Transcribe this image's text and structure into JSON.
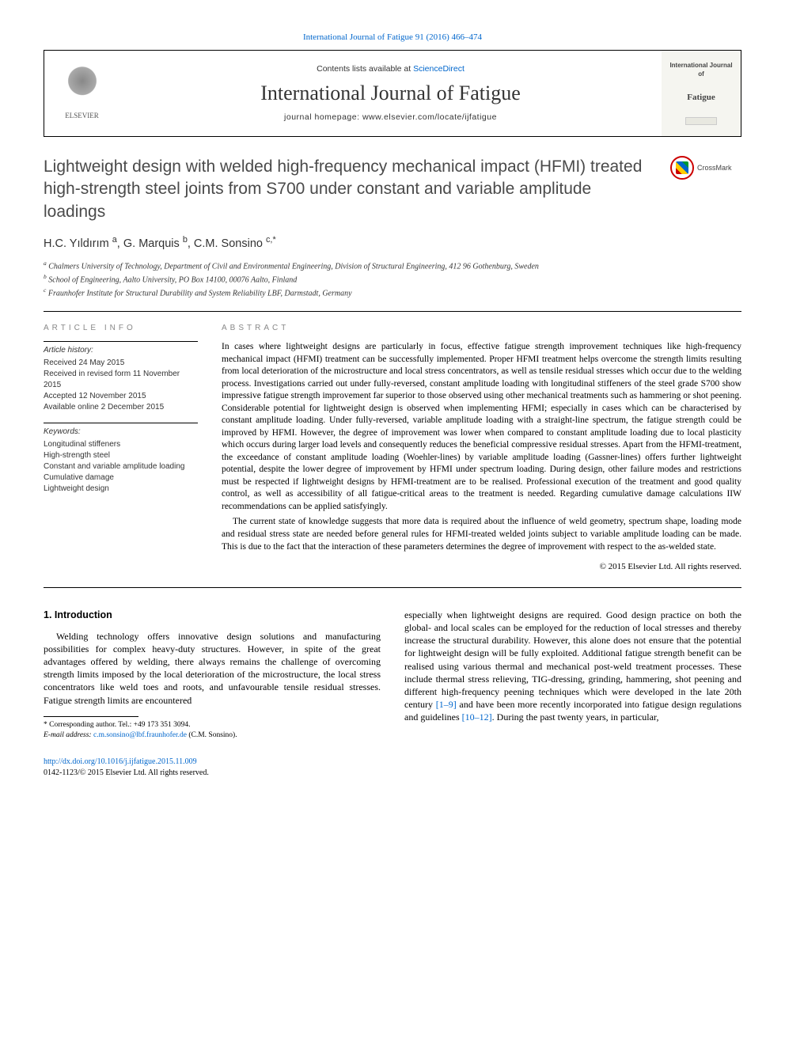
{
  "topRef": "International Journal of Fatigue 91 (2016) 466–474",
  "header": {
    "publisherName": "ELSEVIER",
    "contentsPrefix": "Contents lists available at ",
    "contentsLink": "ScienceDirect",
    "journalName": "International Journal of Fatigue",
    "homepagePrefix": "journal homepage: ",
    "homepage": "www.elsevier.com/locate/ijfatigue",
    "coverTopLine": "International Journal of",
    "coverTitle": "Fatigue"
  },
  "crossmark": "CrossMark",
  "title": "Lightweight design with welded high-frequency mechanical impact (HFMI) treated high-strength steel joints from S700 under constant and variable amplitude loadings",
  "authors": [
    {
      "name": "H.C. Yıldırım",
      "affil": "a"
    },
    {
      "name": "G. Marquis",
      "affil": "b"
    },
    {
      "name": "C.M. Sonsino",
      "affil": "c,*"
    }
  ],
  "affiliations": [
    {
      "sup": "a",
      "text": "Chalmers University of Technology, Department of Civil and Environmental Engineering, Division of Structural Engineering, 412 96 Gothenburg, Sweden"
    },
    {
      "sup": "b",
      "text": "School of Engineering, Aalto University, PO Box 14100, 00076 Aalto, Finland"
    },
    {
      "sup": "c",
      "text": "Fraunhofer Institute for Structural Durability and System Reliability LBF, Darmstadt, Germany"
    }
  ],
  "info": {
    "articleHeading": "article info",
    "historyHeading": "Article history:",
    "history": [
      "Received 24 May 2015",
      "Received in revised form 11 November 2015",
      "Accepted 12 November 2015",
      "Available online 2 December 2015"
    ],
    "keywordsHeading": "Keywords:",
    "keywords": [
      "Longitudinal stiffeners",
      "High-strength steel",
      "Constant and variable amplitude loading",
      "Cumulative damage",
      "Lightweight design"
    ]
  },
  "abstract": {
    "heading": "abstract",
    "p1": "In cases where lightweight designs are particularly in focus, effective fatigue strength improvement techniques like high-frequency mechanical impact (HFMI) treatment can be successfully implemented. Proper HFMI treatment helps overcome the strength limits resulting from local deterioration of the microstructure and local stress concentrators, as well as tensile residual stresses which occur due to the welding process. Investigations carried out under fully-reversed, constant amplitude loading with longitudinal stiffeners of the steel grade S700 show impressive fatigue strength improvement far superior to those observed using other mechanical treatments such as hammering or shot peening. Considerable potential for lightweight design is observed when implementing HFMI; especially in cases which can be characterised by constant amplitude loading. Under fully-reversed, variable amplitude loading with a straight-line spectrum, the fatigue strength could be improved by HFMI. However, the degree of improvement was lower when compared to constant amplitude loading due to local plasticity which occurs during larger load levels and consequently reduces the beneficial compressive residual stresses. Apart from the HFMI-treatment, the exceedance of constant amplitude loading (Woehler-lines) by variable amplitude loading (Gassner-lines) offers further lightweight potential, despite the lower degree of improvement by HFMI under spectrum loading. During design, other failure modes and restrictions must be respected if lightweight designs by HFMI-treatment are to be realised. Professional execution of the treatment and good quality control, as well as accessibility of all fatigue-critical areas to the treatment is needed. Regarding cumulative damage calculations IIW recommendations can be applied satisfyingly.",
    "p2": "The current state of knowledge suggests that more data is required about the influence of weld geometry, spectrum shape, loading mode and residual stress state are needed before general rules for HFMI-treated welded joints subject to variable amplitude loading can be made. This is due to the fact that the interaction of these parameters determines the degree of improvement with respect to the as-welded state.",
    "copyright": "© 2015 Elsevier Ltd. All rights reserved."
  },
  "body": {
    "section1Heading": "1. Introduction",
    "p1a": "Welding technology offers innovative design solutions and manufacturing possibilities for complex heavy-duty structures. However, in spite of the great advantages offered by welding, there always remains the challenge of overcoming strength limits imposed by the local deterioration of the microstructure, the local stress concentrators like weld toes and roots, and unfavourable tensile residual stresses. Fatigue strength limits are encountered",
    "p1b_pre": "especially when lightweight designs are required. Good design practice on both the global- and local scales can be employed for the reduction of local stresses and thereby increase the structural durability. However, this alone does not ensure that the potential for lightweight design will be fully exploited. Additional fatigue strength benefit can be realised using various thermal and mechanical post-weld treatment processes. These include thermal stress relieving, TIG-dressing, grinding, hammering, shot peening and different high-frequency peening techniques which were developed in the late 20th century ",
    "ref1": "[1–9]",
    "p1b_mid": " and have been more recently incorporated into fatigue design regulations and guidelines ",
    "ref2": "[10–12]",
    "p1b_post": ". During the past twenty years, in particular,"
  },
  "footnotes": {
    "corrLabel": "* Corresponding author. Tel.: +49 173 351 3094.",
    "emailLabel": "E-mail address: ",
    "email": "c.m.sonsino@lbf.fraunhofer.de",
    "emailSuffix": " (C.M. Sonsino)."
  },
  "bottom": {
    "doi": "http://dx.doi.org/10.1016/j.ijfatigue.2015.11.009",
    "issn": "0142-1123/© 2015 Elsevier Ltd. All rights reserved."
  },
  "colors": {
    "link": "#0066cc",
    "headingGray": "#888888",
    "textGray": "#333333"
  }
}
